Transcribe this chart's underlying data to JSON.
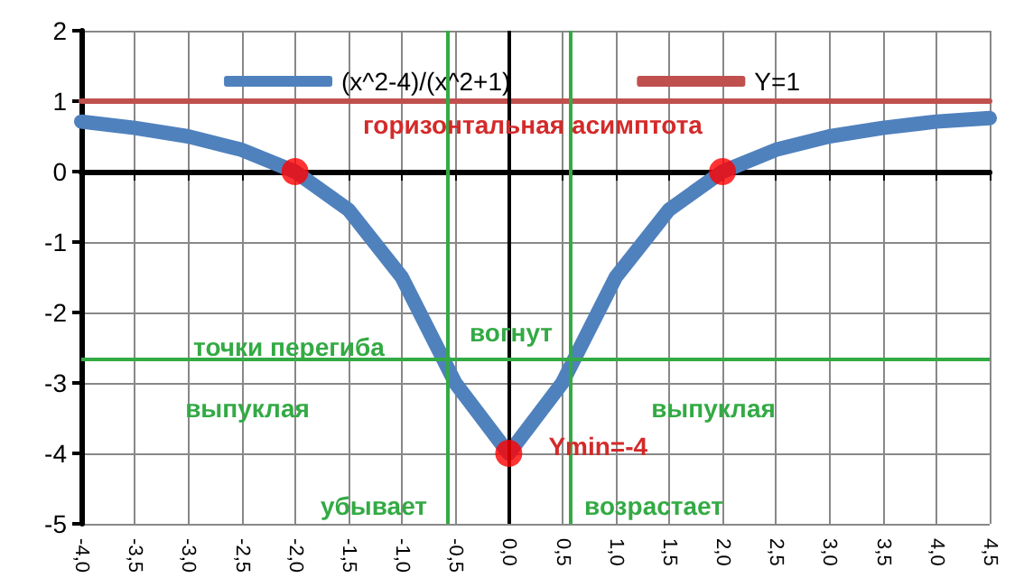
{
  "chart_data": {
    "type": "line",
    "x": [
      -4,
      -3.5,
      -3,
      -2.5,
      -2,
      -1.5,
      -1,
      -0.5,
      0,
      0.5,
      1,
      1.5,
      2,
      2.5,
      3,
      3.5,
      4,
      4.5
    ],
    "series": [
      {
        "name": "(x^2-4)/(x^2+1)",
        "color": "#4f81bd",
        "values": [
          0.71,
          0.62,
          0.5,
          0.31,
          0,
          -0.54,
          -1.5,
          -3,
          -4,
          -3,
          -1.5,
          -0.54,
          0,
          0.31,
          0.5,
          0.62,
          0.71,
          0.76
        ],
        "marker": "none"
      },
      {
        "name": "Y=1",
        "color": "#c0504d",
        "values": [
          1,
          1,
          1,
          1,
          1,
          1,
          1,
          1,
          1,
          1,
          1,
          1,
          1,
          1,
          1,
          1,
          1,
          1
        ],
        "marker": "none"
      },
      {
        "type": "scatter",
        "color": "#ff0000",
        "x": [
          -2,
          0,
          2
        ],
        "values": [
          0,
          -4,
          0
        ],
        "marker": "circle"
      }
    ],
    "xlim": [
      -4,
      4.5
    ],
    "xticks": [
      {
        "value": -4,
        "label": "-4,0"
      },
      {
        "value": -3.5,
        "label": "-3,5"
      },
      {
        "value": -3,
        "label": "-3,0"
      },
      {
        "value": -2.5,
        "label": "-2,5"
      },
      {
        "value": -2,
        "label": "-2,0"
      },
      {
        "value": -1.5,
        "label": "-1,5"
      },
      {
        "value": -1,
        "label": "-1,0"
      },
      {
        "value": -0.5,
        "label": "-0,5"
      },
      {
        "value": 0,
        "label": "0,0"
      },
      {
        "value": 0.5,
        "label": "0,5"
      },
      {
        "value": 1,
        "label": "1,0"
      },
      {
        "value": 1.5,
        "label": "1,5"
      },
      {
        "value": 2,
        "label": "2,0"
      },
      {
        "value": 2.5,
        "label": "2,5"
      },
      {
        "value": 3,
        "label": "3,0"
      },
      {
        "value": 3.5,
        "label": "3,5"
      },
      {
        "value": 4,
        "label": "4,0"
      },
      {
        "value": 4.5,
        "label": "4,5"
      }
    ],
    "ylim": [
      -5,
      2
    ],
    "yticks": [
      -5,
      -4,
      -3,
      -2,
      -1,
      0,
      1,
      2
    ],
    "grid": true,
    "legend": "top",
    "ref_lines": [
      {
        "axis": "x",
        "value": 0,
        "color": "#000000"
      },
      {
        "axis": "x",
        "value": -0.58,
        "color": "#33aa44"
      },
      {
        "axis": "x",
        "value": 0.58,
        "color": "#33aa44"
      },
      {
        "axis": "y",
        "value": -2.67,
        "color": "#33aa44"
      }
    ],
    "annotations": [
      "горизонтальная асимптота",
      "точки перегиба",
      "выпуклая",
      "вогнут",
      "выпуклая",
      "убывает",
      "возрастает",
      {
        "text": "Ymin=-4",
        "x": 0,
        "y": -4
      }
    ]
  }
}
